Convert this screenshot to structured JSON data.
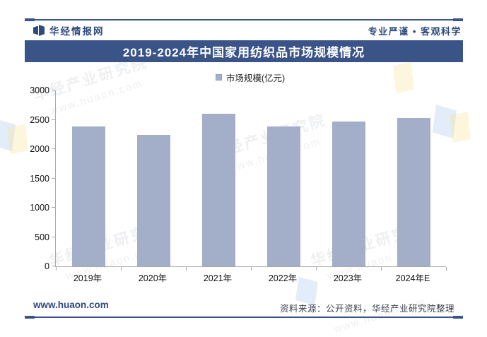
{
  "header": {
    "brand": "华经情报网",
    "slogan": "专业严谨 • 客观科学"
  },
  "title_bar": {
    "title": "2019-2024年中国家用纺织品市场规模情况"
  },
  "chart_data": {
    "type": "bar",
    "title": "2019-2024年中国家用纺织品市场规模情况",
    "legend": "市场规模(亿元)",
    "categories": [
      "2019年",
      "2020年",
      "2021年",
      "2022年",
      "2023年",
      "2024年E"
    ],
    "values": [
      2390,
      2240,
      2605,
      2380,
      2465,
      2525
    ],
    "ylabel": "",
    "xlabel": "",
    "ylim": [
      0,
      3000
    ],
    "yticks": [
      0,
      500,
      1000,
      1500,
      2000,
      2500,
      3000
    ],
    "grid": false,
    "legend_position": "top-center",
    "bar_color": "#a3aec9"
  },
  "watermark": {
    "diagonal_text": "华经产业研究院",
    "url_text": "www.huaon.com"
  },
  "footer": {
    "website": "www.huaon.com",
    "source": "资料来源：公开资料，华经产业研究院整理"
  },
  "colors": {
    "accent_navy": "#3a5488",
    "bar_fill": "#a3aec9",
    "axis_gray": "#a9a9a9"
  }
}
